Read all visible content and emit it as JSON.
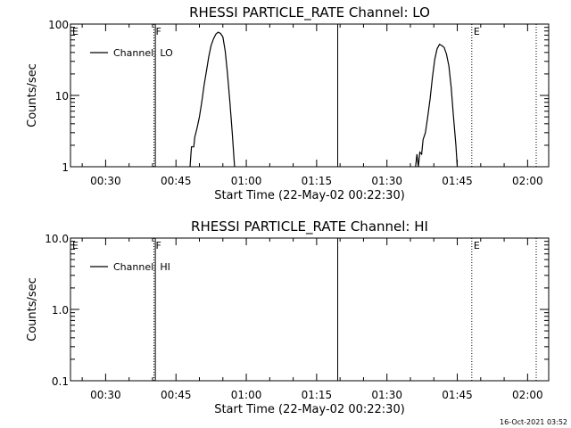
{
  "timestamp": "16-Oct-2021 03:52",
  "chart_data": [
    {
      "type": "line",
      "title": "RHESSI PARTICLE_RATE Channel: LO",
      "xlabel": "Start Time (22-May-02 00:22:30)",
      "ylabel": "Counts/sec",
      "yscale": "log",
      "xlim_min": [
        0,
        102
      ],
      "ylim": [
        1,
        100
      ],
      "x_ticks": [
        {
          "min": 7.5,
          "label": "00:30"
        },
        {
          "min": 22.5,
          "label": "00:45"
        },
        {
          "min": 37.5,
          "label": "01:00"
        },
        {
          "min": 52.5,
          "label": "01:15"
        },
        {
          "min": 67.5,
          "label": "01:30"
        },
        {
          "min": 82.5,
          "label": "01:45"
        },
        {
          "min": 97.5,
          "label": "02:00"
        }
      ],
      "y_ticks": [
        {
          "v": 1,
          "label": "1"
        },
        {
          "v": 10,
          "label": "10"
        },
        {
          "v": 100,
          "label": "100"
        }
      ],
      "legend": {
        "placement": "top-left",
        "entries": [
          "Channel: LO"
        ]
      },
      "markers": [
        {
          "min": 0,
          "label": "E",
          "style": "none"
        },
        {
          "min": 17.8,
          "label": "F",
          "style": "dotted"
        },
        {
          "min": 18.1,
          "label": "",
          "style": "solid"
        },
        {
          "min": 57.0,
          "label": "",
          "style": "solid"
        },
        {
          "min": 85.6,
          "label": "E",
          "style": "dotted"
        },
        {
          "min": 103.0,
          "label": "",
          "style": "dotted"
        }
      ],
      "series": [
        {
          "name": "Channel: LO",
          "segments": [
            [
              [
                25.5,
                1
              ],
              [
                25.8,
                1.9
              ],
              [
                26.3,
                1.9
              ],
              [
                26.5,
                2.6
              ],
              [
                27.0,
                3.5
              ],
              [
                27.5,
                5
              ],
              [
                28.0,
                8
              ],
              [
                28.5,
                14
              ],
              [
                29.0,
                22
              ],
              [
                29.5,
                35
              ],
              [
                30.0,
                50
              ],
              [
                30.5,
                62
              ],
              [
                31.0,
                72
              ],
              [
                31.5,
                77
              ],
              [
                32.0,
                74
              ],
              [
                32.5,
                66
              ],
              [
                33.0,
                42
              ],
              [
                33.5,
                20
              ],
              [
                34.0,
                8
              ],
              [
                34.5,
                3
              ],
              [
                35.0,
                1
              ]
            ],
            [
              [
                73.6,
                1
              ],
              [
                73.9,
                1.5
              ],
              [
                74.2,
                1
              ],
              [
                74.5,
                1.6
              ],
              [
                74.9,
                1.5
              ],
              [
                75.2,
                2.4
              ],
              [
                75.7,
                3
              ],
              [
                76.2,
                5
              ],
              [
                76.7,
                9
              ],
              [
                77.2,
                18
              ],
              [
                77.7,
                32
              ],
              [
                78.2,
                45
              ],
              [
                78.7,
                52
              ],
              [
                79.2,
                50
              ],
              [
                79.7,
                47
              ],
              [
                80.2,
                38
              ],
              [
                80.7,
                26
              ],
              [
                81.2,
                13
              ],
              [
                81.7,
                5
              ],
              [
                82.2,
                2
              ],
              [
                82.5,
                1
              ]
            ]
          ]
        }
      ]
    },
    {
      "type": "line",
      "title": "RHESSI PARTICLE_RATE Channel: HI",
      "xlabel": "Start Time (22-May-02 00:22:30)",
      "ylabel": "Counts/sec",
      "yscale": "log",
      "xlim_min": [
        0,
        102
      ],
      "ylim": [
        0.1,
        10
      ],
      "x_ticks": [
        {
          "min": 7.5,
          "label": "00:30"
        },
        {
          "min": 22.5,
          "label": "00:45"
        },
        {
          "min": 37.5,
          "label": "01:00"
        },
        {
          "min": 52.5,
          "label": "01:15"
        },
        {
          "min": 67.5,
          "label": "01:30"
        },
        {
          "min": 82.5,
          "label": "01:45"
        },
        {
          "min": 97.5,
          "label": "02:00"
        }
      ],
      "y_ticks": [
        {
          "v": 0.1,
          "label": "0.1"
        },
        {
          "v": 1,
          "label": "1.0"
        },
        {
          "v": 10,
          "label": "10.0"
        }
      ],
      "legend": {
        "placement": "top-left",
        "entries": [
          "Channel: HI"
        ]
      },
      "markers": [
        {
          "min": 0,
          "label": "E",
          "style": "none"
        },
        {
          "min": 17.8,
          "label": "F",
          "style": "dotted"
        },
        {
          "min": 18.1,
          "label": "",
          "style": "solid"
        },
        {
          "min": 57.0,
          "label": "",
          "style": "solid"
        },
        {
          "min": 85.6,
          "label": "E",
          "style": "dotted"
        },
        {
          "min": 103.0,
          "label": "",
          "style": "dotted"
        }
      ],
      "series": [
        {
          "name": "Channel: HI",
          "segments": []
        }
      ]
    }
  ]
}
